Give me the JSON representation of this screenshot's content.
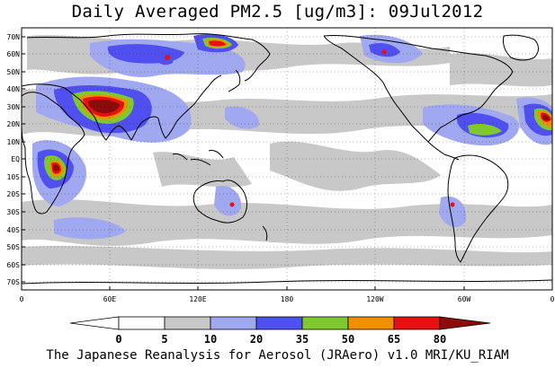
{
  "title": "Daily Averaged PM2.5 [ug/m3]: 09Jul2012",
  "footer": "The Japanese Reanalysis for Aerosol (JRAero) v1.0 MRI/KU_RIAM",
  "map": {
    "projection": "equirectangular",
    "lon_range": [
      0,
      360
    ],
    "lat_range": [
      -75,
      75
    ],
    "grid": "dotted",
    "lat_labels": [
      "70N",
      "60N",
      "50N",
      "40N",
      "30N",
      "20N",
      "10N",
      "EQ",
      "10S",
      "20S",
      "30S",
      "40S",
      "50S",
      "60S",
      "70S"
    ],
    "lon_labels": [
      "0",
      "60E",
      "120E",
      "180",
      "120W",
      "60W",
      "0"
    ]
  },
  "colorbar": {
    "unit": "ug/m3",
    "levels": [
      "0",
      "5",
      "10",
      "20",
      "35",
      "50",
      "65",
      "80"
    ],
    "colors": {
      "lt0": "#ffffff",
      "0_5": "#ffffff",
      "5_10": "#c8c8c8",
      "10_20": "#a0a8f0",
      "20_35": "#5050f0",
      "35_50": "#80c830",
      "50_65": "#f09000",
      "65_80": "#e81010",
      "gt80": "#8c0c0c"
    }
  }
}
